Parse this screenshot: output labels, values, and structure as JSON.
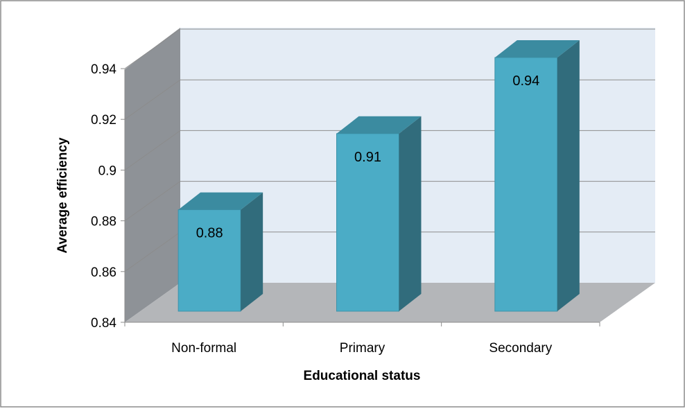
{
  "chart_data": {
    "type": "bar",
    "title": "",
    "xlabel": "Educational status",
    "ylabel": "Average efficiency",
    "categories": [
      "Non-formal",
      "Primary",
      "Secondary"
    ],
    "values": [
      0.88,
      0.91,
      0.94
    ],
    "data_labels": [
      "0.88",
      "0.91",
      "0.94"
    ],
    "y_ticks": [
      "0.84",
      "0.86",
      "0.88",
      "0.9",
      "0.92",
      "0.94"
    ],
    "ylim": [
      0.84,
      0.95
    ],
    "grid": true,
    "legend": "none",
    "style": "3d-column",
    "colors": {
      "bar_front": "#4BACC6",
      "bar_side": "#316C7C",
      "bar_top": "#3B8BA0",
      "back_wall": "#E4ECF5",
      "side_wall": "#8E9297",
      "floor": "#B4B6B9",
      "gridline": "#8C8C8C"
    }
  }
}
